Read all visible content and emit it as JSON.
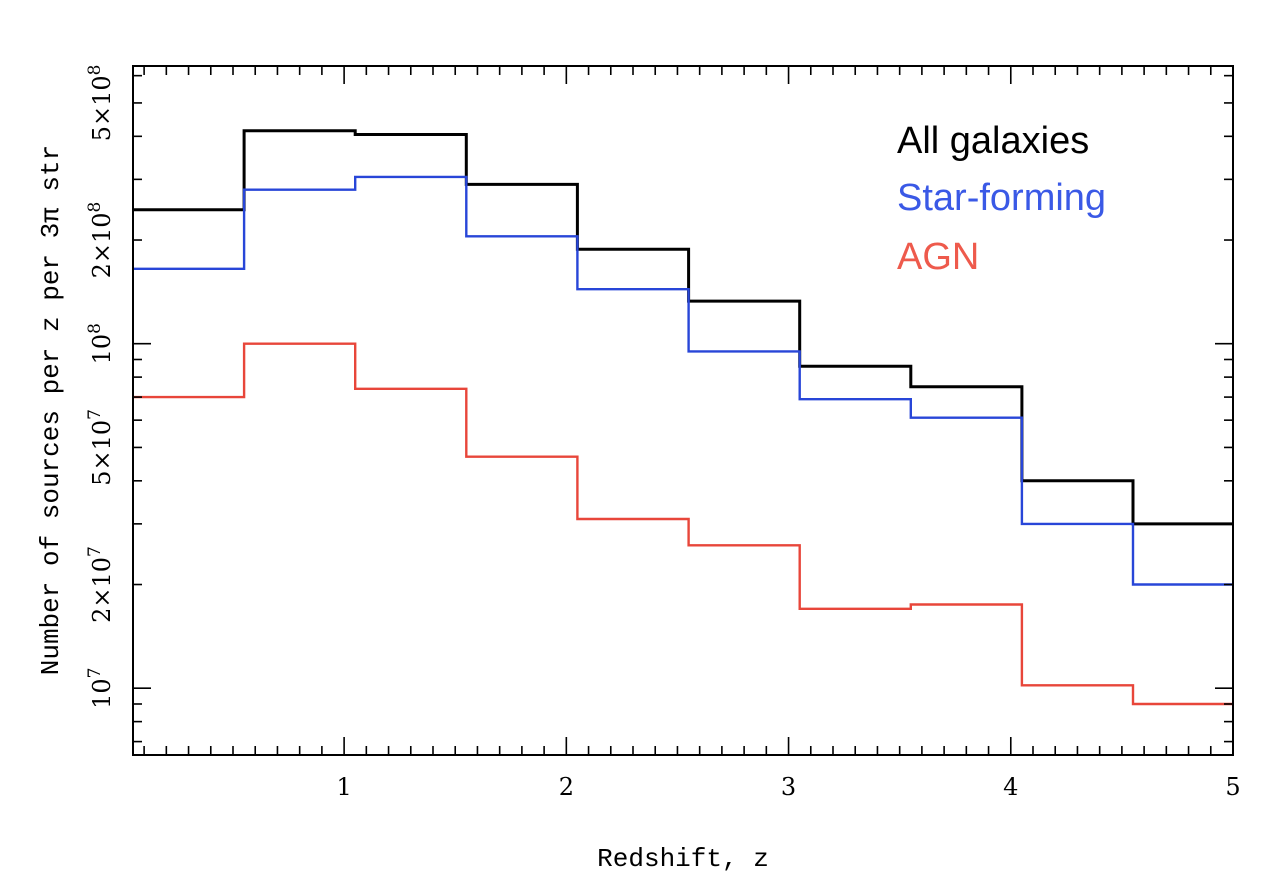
{
  "chart_data": {
    "type": "line",
    "step": true,
    "xlabel": "Redshift, z",
    "ylabel": "Number of sources per z per 3π str",
    "xlim": [
      0.05,
      5.0
    ],
    "ylim": [
      6400000,
      640000000
    ],
    "yscale": "log",
    "xticks": [
      {
        "value": 1,
        "label": "1"
      },
      {
        "value": 2,
        "label": "2"
      },
      {
        "value": 3,
        "label": "3"
      },
      {
        "value": 4,
        "label": "4"
      },
      {
        "value": 5,
        "label": "5"
      }
    ],
    "yticks": [
      {
        "value": 10000000,
        "mantissa": "",
        "base": "10",
        "exponent": "7"
      },
      {
        "value": 20000000,
        "mantissa": "2×",
        "base": "10",
        "exponent": "7"
      },
      {
        "value": 50000000,
        "mantissa": "5×",
        "base": "10",
        "exponent": "7"
      },
      {
        "value": 100000000,
        "mantissa": "",
        "base": "10",
        "exponent": "8"
      },
      {
        "value": 200000000,
        "mantissa": "2×",
        "base": "10",
        "exponent": "8"
      },
      {
        "value": 500000000,
        "mantissa": "5×",
        "base": "10",
        "exponent": "8"
      }
    ],
    "bin_edges": [
      0.05,
      0.55,
      1.05,
      1.55,
      2.05,
      2.55,
      3.05,
      3.55,
      4.05,
      4.55,
      5.0
    ],
    "series": [
      {
        "name": "All galaxies",
        "color": "#000000",
        "values": [
          245000000,
          415000000,
          405000000,
          290000000,
          188000000,
          133000000,
          86000000,
          75000000,
          40000000,
          30000000
        ]
      },
      {
        "name": "Star-forming",
        "color": "#2846d8",
        "values": [
          165000000,
          280000000,
          305000000,
          205000000,
          144000000,
          95000000,
          69000000,
          61000000,
          30000000,
          20000000
        ]
      },
      {
        "name": "AGN",
        "color": "#e8463a",
        "values": [
          70000000,
          100000000,
          74000000,
          47000000,
          31000000,
          26000000,
          17000000,
          17500000,
          10200000,
          9000000
        ]
      }
    ],
    "legend": {
      "position": "top-right",
      "entries": [
        {
          "label": "All galaxies",
          "color": "#000000"
        },
        {
          "label": "Star-forming",
          "color": "#3a59e6"
        },
        {
          "label": "AGN",
          "color": "#ee5a4c"
        }
      ]
    }
  }
}
